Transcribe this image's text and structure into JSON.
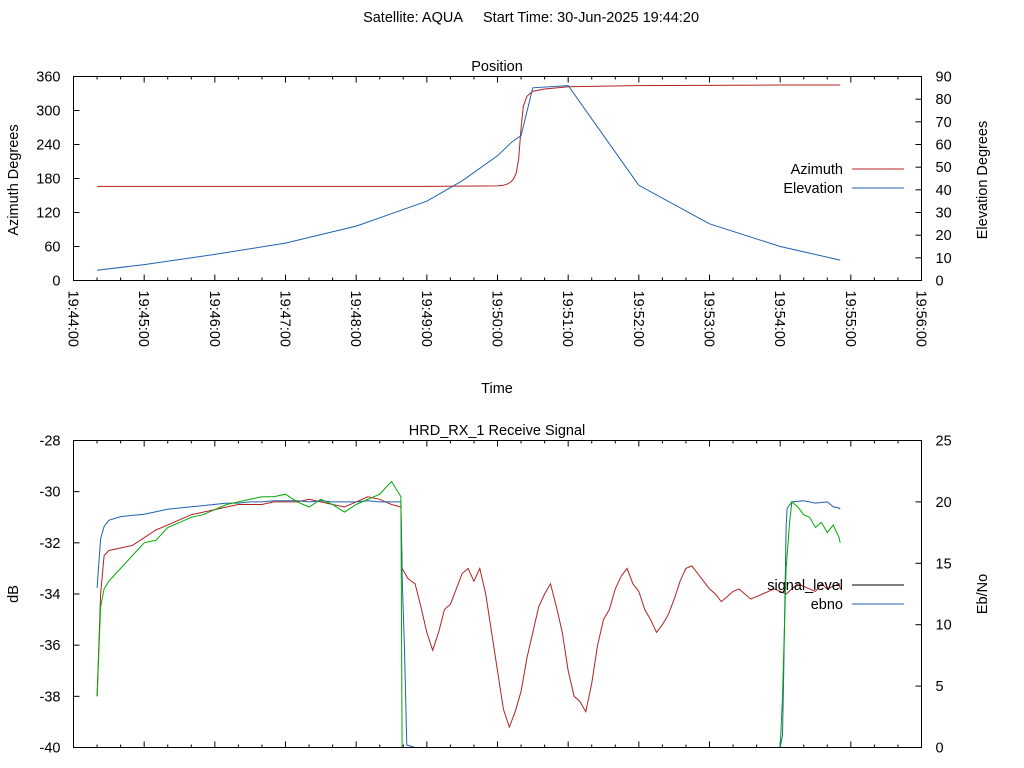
{
  "header": {
    "satellite": "Satellite: AQUA",
    "start_time": "Start Time: 30-Jun-2025 19:44:20"
  },
  "chart_data": [
    {
      "type": "line",
      "title": "Position",
      "xlabel": "Time",
      "ylabel": "Azimuth Degrees",
      "y2label": "Elevation Degrees",
      "x_ticks": [
        "19:44:00",
        "19:45:00",
        "19:46:00",
        "19:47:00",
        "19:48:00",
        "19:49:00",
        "19:50:00",
        "19:51:00",
        "19:52:00",
        "19:53:00",
        "19:54:00",
        "19:55:00",
        "19:56:00"
      ],
      "xlim_seconds": [
        0,
        720
      ],
      "ylim": [
        0,
        360
      ],
      "y_ticks": [
        0,
        60,
        120,
        180,
        240,
        300,
        360
      ],
      "y2lim": [
        0,
        90
      ],
      "y2_ticks": [
        0,
        10,
        20,
        30,
        40,
        50,
        60,
        70,
        80,
        90
      ],
      "legend_position": "right",
      "series": [
        {
          "name": "Azimuth",
          "axis": "y",
          "color": "#b22222",
          "x": [
            20,
            300,
            360,
            365,
            368,
            370,
            372,
            374,
            376,
            378,
            380,
            382,
            385,
            390,
            400,
            420,
            480,
            600,
            651
          ],
          "values": [
            166,
            166,
            167,
            168,
            170,
            172,
            175,
            181,
            190,
            215,
            270,
            308,
            325,
            334,
            338,
            342,
            344,
            345,
            345
          ]
        },
        {
          "name": "Elevation",
          "axis": "y2",
          "color": "#2060b0",
          "x": [
            20,
            60,
            120,
            180,
            240,
            300,
            330,
            360,
            372,
            380,
            390,
            420,
            480,
            540,
            600,
            651
          ],
          "values": [
            4.5,
            7,
            11.5,
            16.5,
            24,
            35,
            44,
            55,
            61,
            64,
            85,
            86,
            42,
            25,
            15,
            9
          ]
        }
      ]
    },
    {
      "type": "line",
      "title": "HRD_RX_1 Receive Signal",
      "ylabel": "dB",
      "y2label": "Eb/No",
      "xlim_seconds": [
        0,
        720
      ],
      "ylim": [
        -40,
        -28
      ],
      "y_ticks": [
        -40,
        -38,
        -36,
        -34,
        -32,
        -30,
        -28
      ],
      "y2lim": [
        0,
        25
      ],
      "y2_ticks": [
        0,
        5,
        10,
        15,
        20,
        25
      ],
      "legend_position": "right",
      "series": [
        {
          "name": "signal_level",
          "axis": "y",
          "color": "#b22222",
          "x": [
            20,
            23,
            26,
            30,
            40,
            50,
            60,
            70,
            80,
            90,
            100,
            110,
            120,
            130,
            140,
            150,
            160,
            170,
            180,
            190,
            200,
            210,
            220,
            230,
            240,
            250,
            260,
            270,
            278,
            279,
            284,
            290,
            295,
            300,
            305,
            310,
            315,
            320,
            325,
            330,
            335,
            340,
            345,
            350,
            355,
            360,
            365,
            370,
            375,
            380,
            385,
            390,
            395,
            400,
            405,
            410,
            415,
            420,
            425,
            430,
            435,
            440,
            445,
            450,
            455,
            460,
            465,
            470,
            475,
            480,
            485,
            490,
            495,
            500,
            505,
            510,
            515,
            520,
            525,
            530,
            535,
            540,
            545,
            550,
            555,
            560,
            565,
            570,
            575,
            580,
            585,
            590,
            595,
            600,
            605,
            610,
            615,
            620,
            625,
            630,
            635,
            640,
            645,
            650,
            651
          ],
          "values": [
            -38,
            -34,
            -32.5,
            -32.3,
            -32.2,
            -32.1,
            -31.8,
            -31.5,
            -31.3,
            -31.1,
            -30.9,
            -30.8,
            -30.7,
            -30.6,
            -30.5,
            -30.5,
            -30.5,
            -30.4,
            -30.4,
            -30.4,
            -30.3,
            -30.4,
            -30.5,
            -30.6,
            -30.4,
            -30.2,
            -30.3,
            -30.5,
            -30.6,
            -33.0,
            -33.4,
            -33.6,
            -34.5,
            -35.5,
            -36.2,
            -35.5,
            -34.6,
            -34.4,
            -33.8,
            -33.2,
            -33.0,
            -33.5,
            -33.0,
            -34.0,
            -35.5,
            -37.0,
            -38.5,
            -39.2,
            -38.6,
            -37.8,
            -36.5,
            -35.5,
            -34.5,
            -34.0,
            -33.6,
            -34.5,
            -35.5,
            -37.0,
            -38.0,
            -38.2,
            -38.6,
            -37.5,
            -36.0,
            -35.0,
            -34.6,
            -33.8,
            -33.3,
            -33.0,
            -33.6,
            -33.9,
            -34.6,
            -35.0,
            -35.5,
            -35.2,
            -34.8,
            -34.2,
            -33.5,
            -33.0,
            -32.9,
            -33.2,
            -33.5,
            -33.8,
            -34.0,
            -34.3,
            -34.1,
            -33.9,
            -33.8,
            -34.0,
            -34.2,
            -34.1,
            -34.0,
            -33.9,
            -33.8,
            -33.9,
            -34.0,
            -33.8,
            -33.6,
            -33.7,
            -33.8,
            -33.9,
            -33.6,
            -33.8,
            -33.7,
            -33.6,
            -33.8
          ]
        },
        {
          "name": "ebno",
          "axis": "y2",
          "color": "#2060b0",
          "x": [
            20,
            23,
            26,
            30,
            40,
            50,
            60,
            70,
            80,
            90,
            100,
            110,
            120,
            130,
            140,
            150,
            160,
            170,
            180,
            190,
            200,
            210,
            220,
            230,
            240,
            250,
            260,
            270,
            278,
            279,
            281,
            283,
            290,
            600,
            602,
            603,
            604,
            605,
            606,
            610,
            620,
            630,
            640,
            645,
            650,
            651
          ],
          "values": [
            13,
            17,
            18,
            18.5,
            18.8,
            18.9,
            19,
            19.2,
            19.4,
            19.5,
            19.6,
            19.7,
            19.8,
            19.9,
            19.9,
            20,
            20,
            20.1,
            20.1,
            20.1,
            20,
            20.1,
            20,
            20,
            20,
            20.1,
            20,
            20,
            20,
            14,
            8,
            0.2,
            0,
            0,
            1,
            6,
            12,
            18,
            19.5,
            20,
            20.1,
            19.9,
            20,
            19.6,
            19.5,
            19.4
          ]
        },
        {
          "name": "",
          "axis": "y",
          "color": "#00aa00",
          "x": [
            20,
            23,
            26,
            30,
            40,
            50,
            60,
            70,
            80,
            90,
            100,
            110,
            120,
            130,
            140,
            150,
            160,
            170,
            180,
            190,
            200,
            210,
            220,
            230,
            240,
            250,
            260,
            270,
            278,
            279,
            600,
            602,
            605,
            608,
            610,
            615,
            620,
            625,
            630,
            635,
            640,
            645,
            650,
            651
          ],
          "values": [
            -38,
            -34.5,
            -33.8,
            -33.5,
            -33,
            -32.5,
            -32,
            -31.9,
            -31.4,
            -31.2,
            -31,
            -30.9,
            -30.7,
            -30.5,
            -30.4,
            -30.3,
            -30.2,
            -30.2,
            -30.1,
            -30.4,
            -30.6,
            -30.3,
            -30.5,
            -30.8,
            -30.5,
            -30.3,
            -30.1,
            -29.6,
            -30.2,
            -40,
            -40,
            -38,
            -33,
            -31.2,
            -30.4,
            -30.6,
            -30.9,
            -31.0,
            -31.4,
            -31.2,
            -31.6,
            -31.3,
            -31.8,
            -32.0
          ]
        }
      ]
    }
  ]
}
